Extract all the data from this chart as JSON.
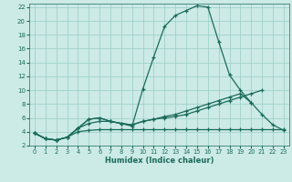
{
  "xlabel": "Humidex (Indice chaleur)",
  "bg_color": "#cceae6",
  "grid_color": "#99ccc6",
  "line_color": "#1a6b5a",
  "xlim": [
    -0.5,
    23.5
  ],
  "ylim": [
    2,
    22.5
  ],
  "xticks": [
    0,
    1,
    2,
    3,
    4,
    5,
    6,
    7,
    8,
    9,
    10,
    11,
    12,
    13,
    14,
    15,
    16,
    17,
    18,
    19,
    20,
    21,
    22,
    23
  ],
  "yticks": [
    2,
    4,
    6,
    8,
    10,
    12,
    14,
    16,
    18,
    20,
    22
  ],
  "series": [
    {
      "x": [
        0,
        1,
        2,
        3,
        4,
        5,
        6,
        7,
        8,
        9,
        10,
        11,
        12,
        13,
        14,
        15,
        16,
        17,
        18,
        19,
        20,
        21,
        22,
        23
      ],
      "y": [
        3.8,
        3.0,
        2.8,
        3.2,
        4.5,
        5.8,
        6.0,
        5.5,
        5.2,
        4.8,
        10.2,
        14.8,
        19.2,
        20.8,
        21.5,
        22.2,
        22.0,
        17.0,
        12.2,
        10.0,
        8.2,
        6.5,
        5.0,
        4.2
      ]
    },
    {
      "x": [
        0,
        1,
        2,
        3,
        4,
        5,
        6,
        7,
        8,
        9,
        10,
        11,
        12,
        13,
        14,
        15,
        16,
        17,
        18,
        19,
        20,
        21,
        22,
        23
      ],
      "y": [
        3.8,
        3.0,
        2.8,
        3.2,
        4.0,
        4.2,
        4.3,
        4.3,
        4.3,
        4.3,
        4.3,
        4.3,
        4.3,
        4.3,
        4.3,
        4.3,
        4.3,
        4.3,
        4.3,
        4.3,
        4.3,
        4.3,
        4.3,
        4.3
      ]
    },
    {
      "x": [
        0,
        1,
        2,
        3,
        4,
        5,
        6,
        7,
        8,
        9,
        10,
        11,
        12,
        13,
        14,
        15,
        16,
        17,
        18,
        19,
        20,
        21
      ],
      "y": [
        3.8,
        3.0,
        2.8,
        3.2,
        4.5,
        5.2,
        5.5,
        5.5,
        5.2,
        5.0,
        5.5,
        5.8,
        6.0,
        6.2,
        6.5,
        7.0,
        7.5,
        8.0,
        8.5,
        9.0,
        9.5,
        10.0
      ]
    },
    {
      "x": [
        0,
        1,
        2,
        3,
        4,
        5,
        6,
        7,
        8,
        9,
        10,
        11,
        12,
        13,
        14,
        15,
        16,
        17,
        18,
        19,
        20
      ],
      "y": [
        3.8,
        3.0,
        2.8,
        3.2,
        4.5,
        5.8,
        6.0,
        5.5,
        5.2,
        5.0,
        5.5,
        5.8,
        6.2,
        6.5,
        7.0,
        7.5,
        8.0,
        8.5,
        9.0,
        9.5,
        8.2
      ]
    }
  ]
}
